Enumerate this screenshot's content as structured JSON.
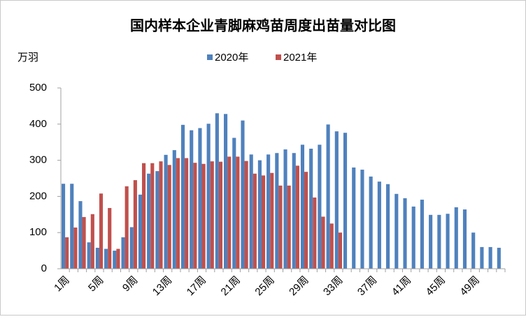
{
  "chart_data": {
    "type": "bar",
    "title": "国内样本企业青脚麻鸡苗周度出苗量对比图",
    "y_label": "万羽",
    "categories": [
      "1周",
      null,
      null,
      null,
      "5周",
      null,
      null,
      null,
      "9周",
      null,
      null,
      null,
      "13周",
      null,
      null,
      null,
      "17周",
      null,
      null,
      null,
      "21周",
      null,
      null,
      null,
      "25周",
      null,
      null,
      null,
      "29周",
      null,
      null,
      null,
      "33周",
      null,
      null,
      null,
      "37周",
      null,
      null,
      null,
      "41周",
      null,
      null,
      null,
      "45周",
      null,
      null,
      null,
      "49周",
      null,
      null,
      null
    ],
    "series": [
      {
        "name": "2020年",
        "color": "#4f81bd",
        "values": [
          235,
          235,
          187,
          73,
          58,
          55,
          50,
          87,
          115,
          205,
          263,
          270,
          315,
          328,
          398,
          383,
          389,
          401,
          430,
          428,
          362,
          410,
          316,
          300,
          316,
          320,
          330,
          320,
          343,
          332,
          343,
          399,
          380,
          376,
          280,
          274,
          255,
          241,
          234,
          207,
          195,
          172,
          191,
          149,
          149,
          152,
          170,
          164,
          100,
          60,
          60,
          58
        ]
      },
      {
        "name": "2021年",
        "color": "#c0504d",
        "values": [
          87,
          114,
          143,
          151,
          208,
          168,
          55,
          228,
          245,
          292,
          292,
          297,
          287,
          306,
          306,
          293,
          290,
          297,
          296,
          310,
          310,
          298,
          263,
          258,
          265,
          230,
          230,
          285,
          268,
          197,
          144,
          125,
          100,
          null,
          null,
          null,
          null,
          null,
          null,
          null,
          null,
          null,
          null,
          null,
          null,
          null,
          null,
          null,
          null,
          null,
          null,
          null
        ]
      }
    ],
    "ylim": [
      0,
      500
    ],
    "yticks": [
      0,
      100,
      200,
      300,
      400,
      500
    ],
    "grid": false
  }
}
